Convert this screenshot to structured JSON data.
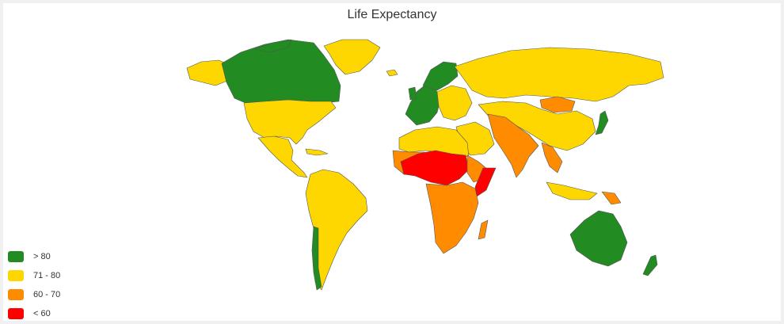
{
  "title": "Life Expectancy",
  "legend": [
    {
      "label": "> 80",
      "color": "#228b22"
    },
    {
      "label": "71 - 80",
      "color": "#ffd700"
    },
    {
      "label": "60 - 70",
      "color": "#ff8c00"
    },
    {
      "label": "< 60",
      "color": "#ff0000"
    }
  ]
}
